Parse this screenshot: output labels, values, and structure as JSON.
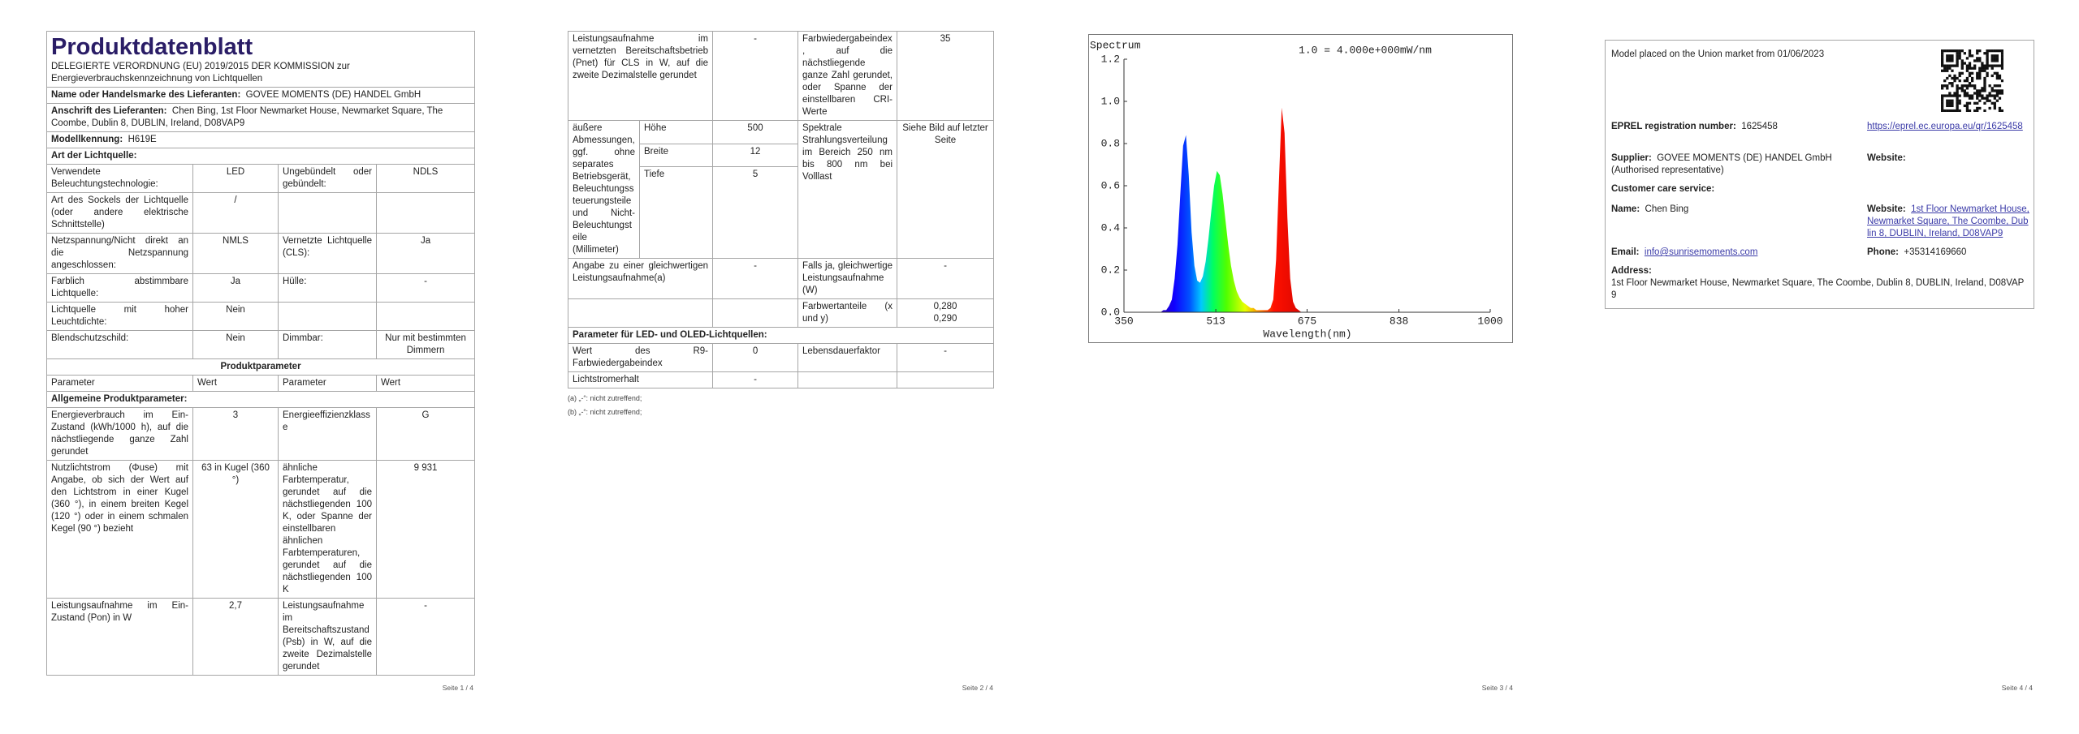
{
  "page1": {
    "title": "Produktdatenblatt",
    "subtitle": "DELEGIERTE VERORDNUNG (EU) 2019/2015 DER KOMMISSION zur Energieverbrauchskennzeichnung von Lichtquellen",
    "supplier_name": {
      "label": "Name oder Handelsmarke des Lieferanten:",
      "value": "GOVEE MOMENTS (DE) HANDEL GmbH"
    },
    "supplier_address": {
      "label": "Anschrift des Lieferanten:",
      "value": "Chen Bing, 1st Floor Newmarket House, Newmarket Square, The Coombe, Dublin 8, DUBLIN, Ireland, D08VAP9"
    },
    "model": {
      "label": "Modellkennung:",
      "value": "H619E"
    },
    "light_source_heading": "Art der Lichtquelle:",
    "light_source_rows": [
      [
        "Verwendete Beleuchtungstechnologie:",
        "LED",
        "Ungebündelt oder gebündelt:",
        "NDLS"
      ],
      [
        "Art des Sockels der Lichtquelle (oder andere elektrische Schnittstelle)",
        "/",
        null,
        null
      ],
      [
        "Netzspannung/Nicht direkt an die Netzspannung angeschlossen:",
        "NMLS",
        "Vernetzte Lichtquelle (CLS):",
        "Ja"
      ],
      [
        "Farblich abstimmbare Lichtquelle:",
        "Ja",
        "Hülle:",
        "-"
      ],
      [
        "Lichtquelle mit hoher Leuchtdichte:",
        "Nein",
        null,
        null
      ],
      [
        "Blendschutzschild:",
        "Nein",
        "Dimmbar:",
        "Nur mit bestimmten Dimmern"
      ]
    ],
    "parameters_heading": "Produktparameter",
    "parameters_header": [
      "Parameter",
      "Wert",
      "Parameter",
      "Wert"
    ],
    "general_heading": "Allgemeine Produktparameter:",
    "general_rows": [
      [
        "Energieverbrauch im Ein-Zustand (kWh/1000 h), auf die nächstliegende ganze Zahl gerundet",
        "3",
        "Energieeffizienzklasse",
        "G"
      ],
      [
        "Nutzlichtstrom (Φuse) mit Angabe, ob sich der Wert auf den Lichtstrom in einer Kugel (360 °), in einem breiten Kegel (120 °) oder in einem schmalen Kegel (90 °) bezieht",
        "63 in Kugel (360 °)",
        "ähnliche Farbtemperatur, gerundet auf die nächstliegenden 100 K, oder Spanne der einstellbaren ähnlichen Farbtemperaturen, gerundet auf die nächstliegenden 100 K",
        "9 931"
      ],
      [
        "Leistungsaufnahme im Ein-Zustand (Pon) in W",
        "2,7",
        "Leistungsaufnahme im Bereitschaftszustand (Psb) in W, auf die zweite Dezimalstelle gerundet",
        "-"
      ]
    ],
    "footer": "Seite 1 / 4"
  },
  "page2": {
    "standby_row": [
      "Leistungsaufnahme im vernetzten Bereitschaftsbetrieb (Pnet) für CLS in W, auf die zweite Dezimalstelle gerundet",
      "-",
      "Farbwiedergabeindex, auf die nächstliegende ganze Zahl gerundet, oder Spanne der einstellbaren CRI-Werte",
      "35"
    ],
    "dimensions": {
      "label": "äußere Abmessungen, ggf. ohne separates Betriebsgerät, Beleuchtungssteuerungsteile und Nicht-Beleuchtungsteile (Millimeter)",
      "items": [
        [
          "Höhe",
          "500"
        ],
        [
          "Breite",
          "12"
        ],
        [
          "Tiefe",
          "5"
        ]
      ],
      "spectrum_label": "Spektrale Strahlungsverteilung im Bereich 250 nm bis 800 nm bei Volllast",
      "spectrum_value": "Siehe Bild auf letzter Seite"
    },
    "equivalent_row": [
      "Angabe zu einer gleichwertigen Leistungsaufnahme(a)",
      "-",
      "Falls ja, gleichwertige Leistungsaufnahme (W)",
      "-"
    ],
    "chromaticity": {
      "label": "Farbwertanteile (x und y)",
      "values": [
        "0,280",
        "0,290"
      ]
    },
    "led_heading": "Parameter für LED- und OLED-Lichtquellen:",
    "led_rows": [
      [
        "Wert des R9-Farbwiedergabeindex",
        "0",
        "Lebensdauerfaktor",
        "-"
      ],
      [
        "Lichtstromerhalt",
        "-",
        null,
        null
      ]
    ],
    "notes": [
      "(a) „-“: nicht zutreffend;",
      "(b) „-“: nicht zutreffend;"
    ],
    "footer": "Seite 2 / 4"
  },
  "chart_data": {
    "type": "area",
    "title": "Spectrum",
    "annotation": "1.0 = 4.000e+000mW/nm",
    "x_label": "Wavelength(nm)",
    "x": [
      350,
      400,
      405,
      410,
      415,
      420,
      425,
      430,
      435,
      440,
      445,
      450,
      455,
      460,
      465,
      470,
      475,
      480,
      485,
      490,
      495,
      500,
      505,
      510,
      515,
      520,
      525,
      530,
      535,
      540,
      545,
      550,
      555,
      560,
      565,
      570,
      575,
      580,
      585,
      590,
      595,
      600,
      605,
      610,
      615,
      620,
      625,
      630,
      635,
      640,
      645,
      650,
      655,
      660,
      665,
      670,
      1000
    ],
    "values": [
      0,
      0,
      0,
      0,
      0,
      0.01,
      0.01,
      0.03,
      0.06,
      0.16,
      0.32,
      0.56,
      0.79,
      0.84,
      0.65,
      0.38,
      0.22,
      0.15,
      0.14,
      0.17,
      0.24,
      0.35,
      0.48,
      0.6,
      0.67,
      0.65,
      0.56,
      0.44,
      0.32,
      0.22,
      0.15,
      0.1,
      0.07,
      0.05,
      0.04,
      0.03,
      0.02,
      0.02,
      0.01,
      0.01,
      0.01,
      0.01,
      0.01,
      0.02,
      0.06,
      0.25,
      0.62,
      0.97,
      0.85,
      0.45,
      0.16,
      0.05,
      0.02,
      0.01,
      0,
      0,
      0
    ],
    "xlim": [
      350,
      1000
    ],
    "xticks": [
      350,
      513,
      675,
      838,
      1000
    ],
    "ylim": [
      0,
      1.2
    ],
    "yticks": [
      {
        "value": 0,
        "label": "0.0"
      },
      {
        "value": 0.2,
        "label": "0.2"
      },
      {
        "value": 0.4,
        "label": "0.4"
      },
      {
        "value": 0.6,
        "label": "0.6"
      },
      {
        "value": 0.8,
        "label": "0.8"
      },
      {
        "value": 1,
        "label": "1.0"
      },
      {
        "value": 1.2,
        "label": "1.2"
      }
    ]
  },
  "page3": {
    "footer": "Seite 3 / 4"
  },
  "page4": {
    "market": "Model placed on the Union market from 01/06/2023",
    "eprel": {
      "label": "EPREL registration number:",
      "value": "1625458",
      "link": "https://eprel.ec.europa.eu/qr/1625458"
    },
    "supplier": {
      "label": "Supplier:",
      "value": "GOVEE MOMENTS (DE) HANDEL GmbH (Authorised representative)",
      "website_label": "Website:"
    },
    "customer_care": "Customer care service:",
    "name": {
      "label": "Name:",
      "value": "Chen Bing",
      "website_label": "Website:",
      "website": "1st Floor Newmarket House, Newmarket Square, The Coombe, Dublin 8, DUBLIN, Ireland, D08VAP9"
    },
    "email": {
      "label": "Email:",
      "value": "info@sunrisemoments.com"
    },
    "phone": {
      "label": "Phone:",
      "value": "+35314169660"
    },
    "address": {
      "label": "Address:",
      "value": "1st Floor Newmarket House, Newmarket Square, The Coombe, Dublin 8, DUBLIN, Ireland, D08VAP9"
    },
    "footer": "Seite 4 / 4"
  }
}
